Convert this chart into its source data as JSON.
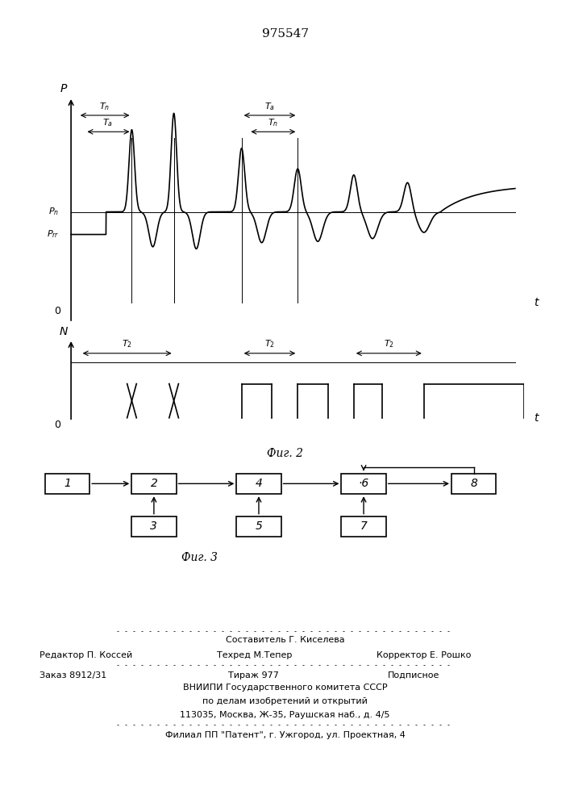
{
  "title": "975547",
  "fig2_label": "Фиг. 2",
  "fig3_label": "Фиг. 3",
  "background_color": "#ffffff",
  "line_color": "#000000"
}
